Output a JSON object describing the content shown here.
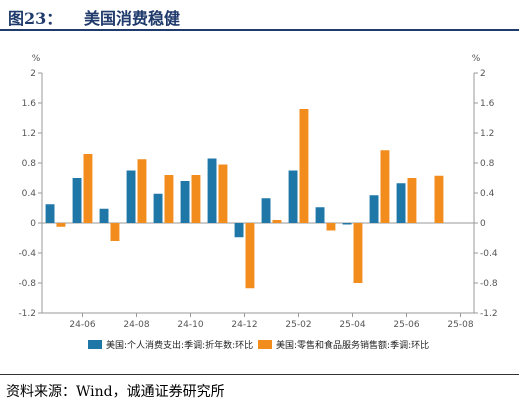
{
  "header": {
    "figure_number": "图23：",
    "title": "美国消费稳健"
  },
  "source": "资料来源：Wind，诚通证券研究所",
  "chart_data": {
    "type": "bar",
    "title": "",
    "y_unit_left": "%",
    "y_unit_right": "%",
    "ylim": [
      -1.2,
      2
    ],
    "y_ticks": [
      2,
      1.6,
      1.2,
      0.8,
      0.4,
      0,
      -0.4,
      -0.8,
      -1.2
    ],
    "y_tick_labels": [
      "2",
      "1.6",
      "1.2",
      "0.8",
      "0.4",
      "0",
      "-0.4",
      "-0.8",
      "-1.2"
    ],
    "categories": [
      "24-05",
      "24-06",
      "24-07",
      "24-08",
      "24-09",
      "24-10",
      "24-11",
      "24-12",
      "25-01",
      "25-02",
      "25-03",
      "25-04",
      "25-05",
      "25-06",
      "25-07",
      "25-08"
    ],
    "x_tick_labels": [
      "24-06",
      "24-08",
      "24-10",
      "24-12",
      "25-02",
      "25-04",
      "25-06",
      "25-08"
    ],
    "x_tick_categories": [
      "24-06",
      "24-08",
      "24-10",
      "24-12",
      "25-02",
      "25-04",
      "25-06",
      "25-08"
    ],
    "legend_position": "bottom",
    "colors": {
      "series1": "#1f77a8",
      "series2": "#f28c1c"
    },
    "series": [
      {
        "name": "美国:个人消费支出:季调:折年数:环比",
        "values": [
          0.25,
          0.6,
          0.19,
          0.7,
          0.39,
          0.56,
          0.86,
          -0.19,
          0.33,
          0.7,
          0.21,
          -0.02,
          0.37,
          0.53,
          null,
          null
        ]
      },
      {
        "name": "美国:零售和食品服务销售额:季调:环比",
        "values": [
          -0.05,
          0.92,
          -0.24,
          0.85,
          0.64,
          0.64,
          0.78,
          -0.87,
          0.04,
          1.52,
          -0.1,
          -0.8,
          0.97,
          0.6,
          0.63,
          null
        ]
      }
    ]
  }
}
